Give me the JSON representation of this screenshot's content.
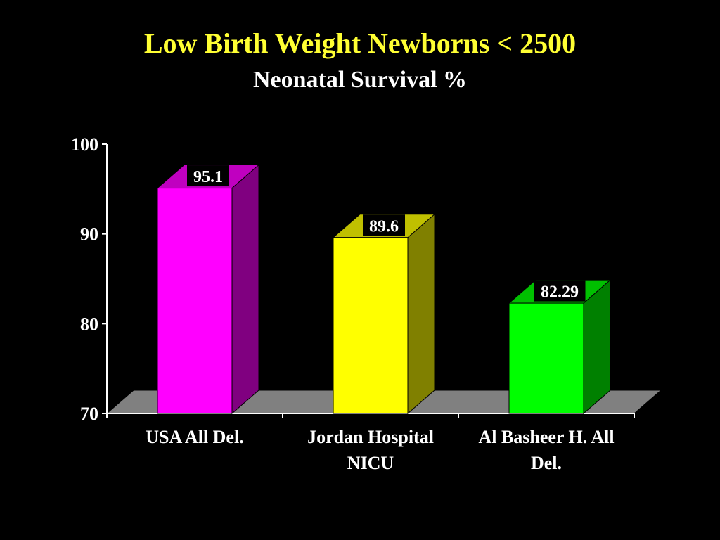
{
  "chart_data": {
    "type": "bar",
    "title": "Low Birth Weight Newborns < 2500",
    "subtitle": "Neonatal Survival %",
    "categories": [
      [
        "USA All Del."
      ],
      [
        "Jordan Hospital",
        "NICU"
      ],
      [
        "Al Basheer H. All",
        "Del."
      ]
    ],
    "values": [
      95.1,
      89.6,
      82.29
    ],
    "value_labels": [
      "95.1",
      "89.6",
      "82.29"
    ],
    "ylim": [
      70,
      100
    ],
    "yticks": [
      70,
      80,
      90,
      100
    ],
    "grid": false,
    "legend": "none",
    "three_d": true
  },
  "colors": {
    "background": "#000000",
    "title": "#ffff33",
    "text": "#ffffff",
    "floor": "#808080",
    "bars": [
      {
        "front": "#ff00ff",
        "side": "#800080",
        "top": "#c000c0"
      },
      {
        "front": "#ffff00",
        "side": "#808000",
        "top": "#c0c000"
      },
      {
        "front": "#00ff00",
        "side": "#008000",
        "top": "#00c000"
      }
    ]
  }
}
